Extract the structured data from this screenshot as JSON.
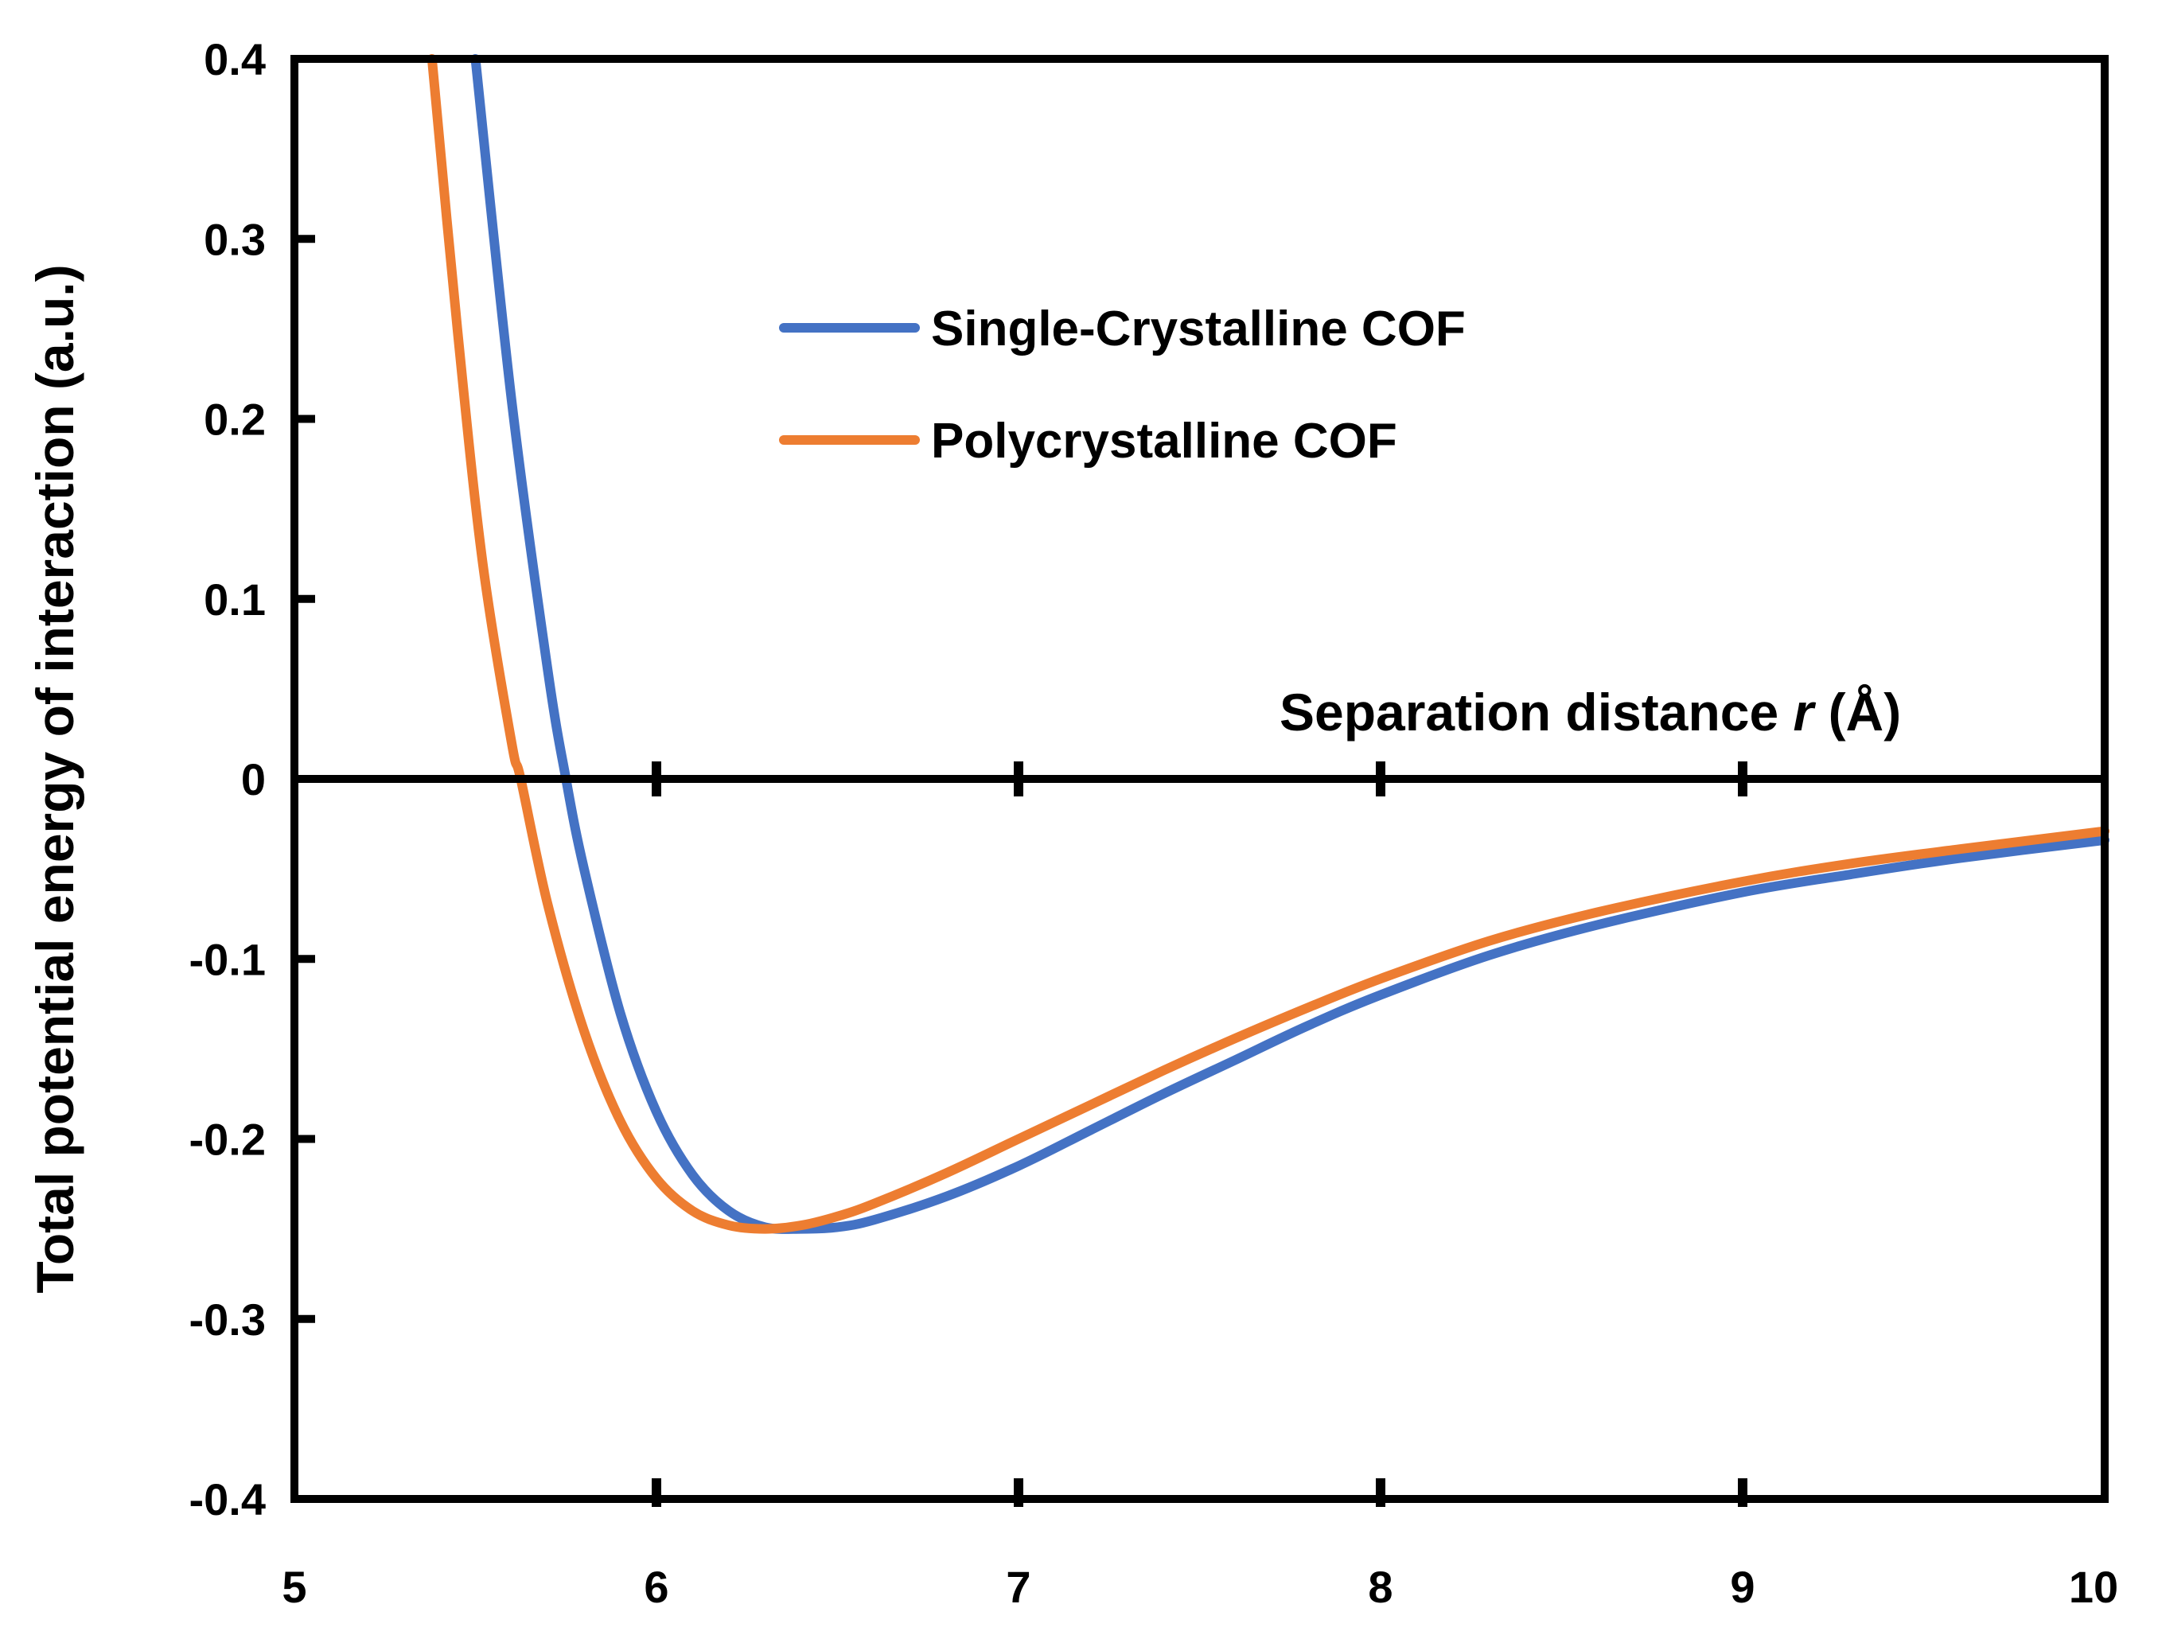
{
  "chart_data": {
    "type": "line",
    "title": "",
    "xlabel": "Separation distance",
    "xlabel_var": "r",
    "xlabel_unit": "(Å)",
    "ylabel": "Total potential energy of interaction (a.u.)",
    "xlim": [
      5,
      10
    ],
    "ylim": [
      -0.4,
      0.4
    ],
    "x_ticks": [
      5,
      6,
      7,
      8,
      9,
      10
    ],
    "x_tick_labels": [
      "5",
      "6",
      "7",
      "8",
      "9",
      "10"
    ],
    "y_ticks": [
      0.4,
      0.3,
      0.2,
      0.1,
      0,
      -0.1,
      -0.2,
      -0.3,
      -0.4
    ],
    "y_tick_labels": [
      "0.4",
      "0.3",
      "0.2",
      "0.1",
      "0",
      "-0.1",
      "-0.2",
      "-0.3",
      "-0.4"
    ],
    "legend_position": "upper-center",
    "grid": false,
    "series": [
      {
        "name": "Single-Crystalline COF",
        "color": "#4472C4",
        "x": [
          5.5,
          5.6,
          5.7,
          5.75,
          5.8,
          5.9,
          6.0,
          6.1,
          6.2,
          6.3,
          6.4,
          6.5,
          6.6,
          6.8,
          7.0,
          7.2,
          7.4,
          7.6,
          7.8,
          8.0,
          8.3,
          8.6,
          9.0,
          9.3,
          9.6,
          10.0
        ],
        "y": [
          0.4,
          0.21,
          0.06,
          0.0,
          -0.05,
          -0.13,
          -0.185,
          -0.22,
          -0.24,
          -0.249,
          -0.25,
          -0.249,
          -0.245,
          -0.232,
          -0.215,
          -0.195,
          -0.175,
          -0.156,
          -0.137,
          -0.12,
          -0.098,
          -0.081,
          -0.063,
          -0.053,
          -0.044,
          -0.034
        ]
      },
      {
        "name": "Polycrystalline COF",
        "color": "#ED7D31",
        "x": [
          5.38,
          5.45,
          5.52,
          5.6,
          5.625,
          5.7,
          5.8,
          5.9,
          6.0,
          6.1,
          6.2,
          6.3,
          6.4,
          6.5,
          6.6,
          6.8,
          7.0,
          7.2,
          7.4,
          7.6,
          7.8,
          8.0,
          8.3,
          8.6,
          9.0,
          9.3,
          9.6,
          10.0
        ],
        "y": [
          0.4,
          0.25,
          0.12,
          0.02,
          0.0,
          -0.07,
          -0.14,
          -0.19,
          -0.222,
          -0.24,
          -0.248,
          -0.25,
          -0.248,
          -0.243,
          -0.236,
          -0.219,
          -0.2,
          -0.181,
          -0.162,
          -0.144,
          -0.127,
          -0.111,
          -0.09,
          -0.074,
          -0.057,
          -0.047,
          -0.039,
          -0.029
        ]
      }
    ]
  }
}
